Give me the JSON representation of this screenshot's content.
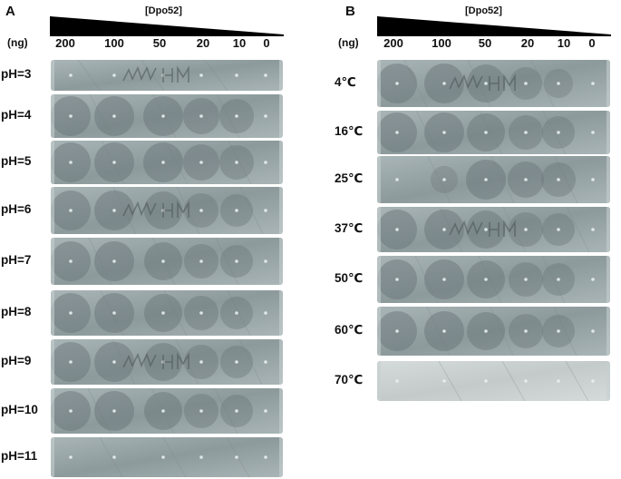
{
  "panels": [
    {
      "letter": "A",
      "concentration_label": "[Dpo52]",
      "unit_label": "(ng)",
      "doses": [
        "200",
        "100",
        "50",
        "20",
        "10",
        "0"
      ],
      "conditions": [
        {
          "label": "pH=3",
          "halos": [
            0,
            0,
            0,
            0,
            0,
            0
          ],
          "mark": true
        },
        {
          "label": "pH=4",
          "halos": [
            1,
            1,
            1,
            0.8,
            0.7,
            0
          ],
          "mark": false
        },
        {
          "label": "pH=5",
          "halos": [
            1,
            1,
            1,
            0.8,
            0.7,
            0
          ],
          "mark": false
        },
        {
          "label": "pH=6",
          "halos": [
            1,
            1,
            0.9,
            0.7,
            0.6,
            0
          ],
          "mark": true
        },
        {
          "label": "pH=7",
          "halos": [
            1,
            1,
            0.9,
            0.7,
            0.6,
            0
          ],
          "mark": false
        },
        {
          "label": "pH=8",
          "halos": [
            1,
            1,
            0.9,
            0.7,
            0.6,
            0
          ],
          "mark": false
        },
        {
          "label": "pH=9",
          "halos": [
            1,
            1,
            0.9,
            0.7,
            0.6,
            0
          ],
          "mark": true
        },
        {
          "label": "pH=10",
          "halos": [
            1,
            1,
            0.9,
            0.7,
            0.6,
            0
          ],
          "mark": false
        },
        {
          "label": "pH=11",
          "halos": [
            0,
            0,
            0,
            0,
            0,
            0
          ],
          "mark": false
        }
      ]
    },
    {
      "letter": "B",
      "concentration_label": "[Dpo52]",
      "unit_label": "(ng)",
      "doses": [
        "200",
        "100",
        "50",
        "20",
        "10",
        "0"
      ],
      "conditions": [
        {
          "label": "4℃",
          "halos": [
            1,
            1,
            0.9,
            0.6,
            0.4,
            0
          ],
          "mark": true
        },
        {
          "label": "16℃",
          "halos": [
            1,
            1,
            0.9,
            0.7,
            0.6,
            0
          ],
          "mark": false
        },
        {
          "label": "25℃",
          "halos": [
            0,
            0.3,
            1,
            0.8,
            0.7,
            0
          ],
          "mark": false
        },
        {
          "label": "37℃",
          "halos": [
            1,
            1,
            0.9,
            0.7,
            0.6,
            0
          ],
          "mark": true
        },
        {
          "label": "50℃",
          "halos": [
            1,
            1,
            0.9,
            0.7,
            0.6,
            0
          ],
          "mark": false
        },
        {
          "label": "60℃",
          "halos": [
            1,
            1,
            0.9,
            0.7,
            0.6,
            0
          ],
          "mark": false
        },
        {
          "label": "70℃",
          "halos": [
            0,
            0,
            0,
            0,
            0,
            0
          ],
          "mark": false,
          "pale": true
        }
      ]
    }
  ],
  "colors": {
    "plate": "#8d9a9b",
    "plate_light": "#a9b5b6",
    "halo": "#6a7679",
    "rim": "#c7cfd0",
    "plate_pale": "#c3cac9"
  }
}
